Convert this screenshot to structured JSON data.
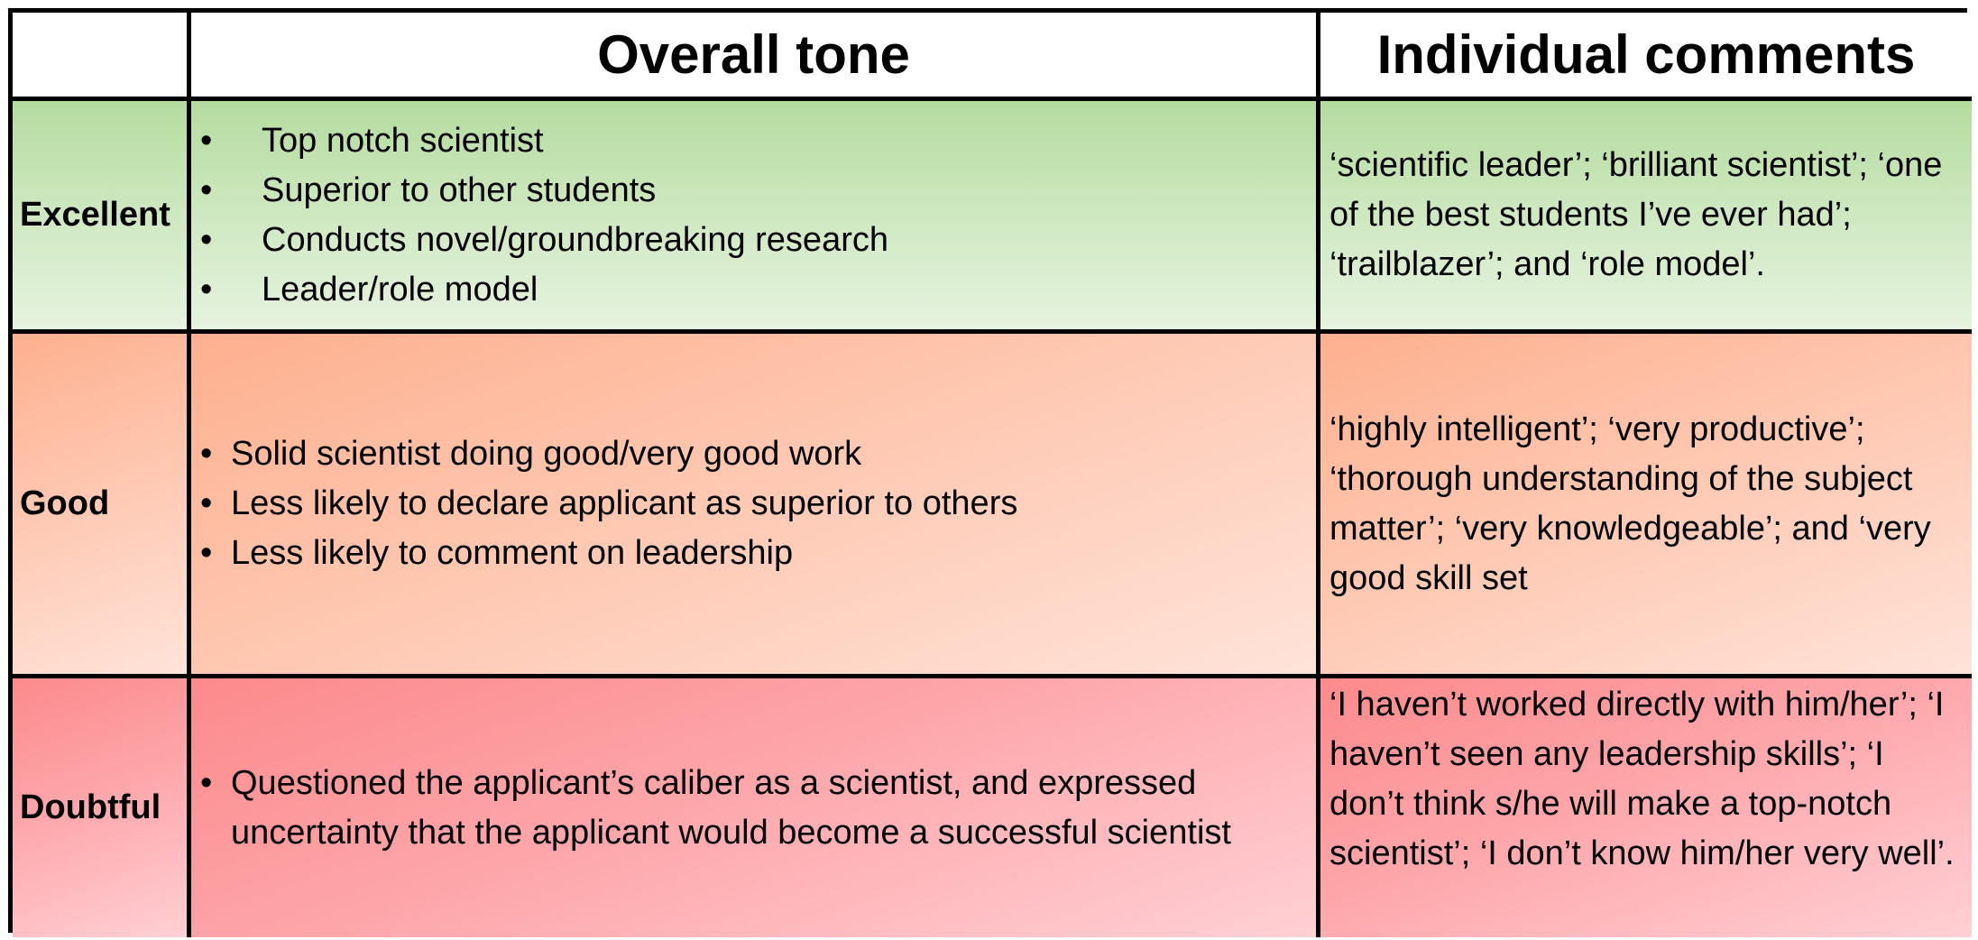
{
  "header": {
    "corner": "",
    "col_tone": "Overall tone",
    "col_comments": "Individual comments"
  },
  "rows": [
    {
      "label": "Excellent",
      "tone_items": [
        "Top notch scientist",
        "Superior to other students",
        "Conducts novel/groundbreaking research",
        "Leader/role model"
      ],
      "comments": "‘scientific leader’; ‘brilliant scientist’; ‘one of the best students I’ve ever had’; ‘trailblazer’; and ‘role model’."
    },
    {
      "label": "Good",
      "tone_items": [
        "Solid scientist doing good/very good work",
        "Less likely to declare applicant as superior to others",
        "Less likely to comment on leadership"
      ],
      "comments": "‘highly intelligent’; ‘very productive’; ‘thorough understanding of the subject matter’; ‘very knowledgeable’; and ‘very good skill set"
    },
    {
      "label": "Doubtful",
      "tone_items": [
        "Questioned the applicant’s caliber as a scientist, and expressed uncertainty that the applicant would become a successful scientist"
      ],
      "comments": "‘I haven’t worked directly with him/her’; ‘I haven’t seen any leadership skills’; ‘I don’t think s/he will make a top-notch scientist’; ‘I don’t know him/her very well’."
    }
  ],
  "bullet_symbol": "•",
  "colors": {
    "excellent": "#b4dc9f",
    "good": "#fdb08f",
    "doubtful": "#fc8a8c",
    "border": "#000000"
  }
}
